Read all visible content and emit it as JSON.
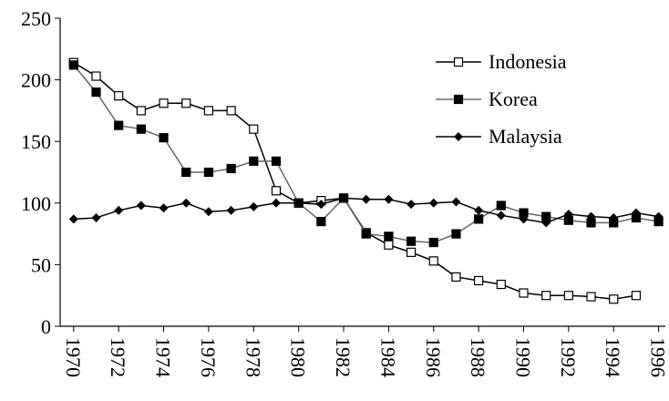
{
  "chart_data": {
    "type": "line",
    "x": [
      1970,
      1971,
      1972,
      1973,
      1974,
      1975,
      1976,
      1977,
      1978,
      1979,
      1980,
      1981,
      1982,
      1983,
      1984,
      1985,
      1986,
      1987,
      1988,
      1989,
      1990,
      1991,
      1992,
      1993,
      1994,
      1995,
      1996
    ],
    "series": [
      {
        "name": "Indonesia",
        "color": "#000000",
        "marker": "open-square",
        "values": [
          214,
          203,
          187,
          175,
          181,
          181,
          175,
          175,
          160,
          110,
          100,
          102,
          104,
          76,
          66,
          60,
          53,
          40,
          37,
          34,
          27,
          25,
          25,
          24,
          22,
          25,
          null
        ]
      },
      {
        "name": "Korea",
        "color": "#666666",
        "marker": "square",
        "values": [
          212,
          190,
          163,
          160,
          153,
          125,
          125,
          128,
          134,
          134,
          100,
          85,
          104,
          75,
          73,
          69,
          68,
          75,
          87,
          98,
          92,
          89,
          86,
          84,
          84,
          88,
          85
        ]
      },
      {
        "name": "Malaysia",
        "color": "#000000",
        "marker": "diamond",
        "values": [
          87,
          88,
          94,
          98,
          96,
          100,
          93,
          94,
          97,
          100,
          100,
          99,
          104,
          103,
          103,
          99,
          100,
          101,
          94,
          90,
          87,
          84,
          91,
          89,
          88,
          92,
          89
        ]
      }
    ],
    "xlim": [
      1969.4,
      1996.3
    ],
    "xticks": [
      1970,
      1972,
      1974,
      1976,
      1978,
      1980,
      1982,
      1984,
      1986,
      1988,
      1990,
      1992,
      1994,
      1996
    ],
    "ylim": [
      0,
      250
    ],
    "yticks": [
      0,
      50,
      100,
      150,
      200,
      250
    ],
    "grid": false,
    "legend": "upper-right"
  }
}
